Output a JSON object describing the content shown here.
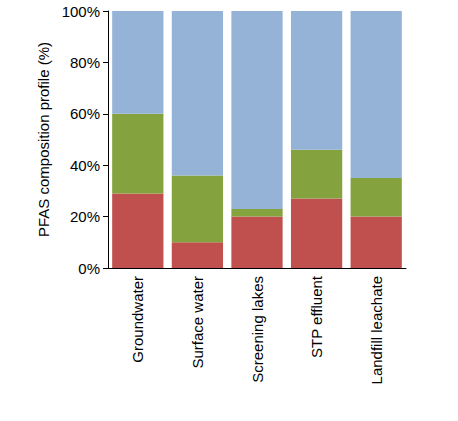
{
  "chart_data": {
    "type": "bar",
    "y_label": "PFAS composition profile (%)",
    "categories": [
      "Groundwater",
      "Surface water",
      "Screening lakes",
      "STP effluent",
      "Landfill leachate"
    ],
    "series": [
      {
        "color": "#c0504d",
        "values": [
          29,
          10,
          20,
          27,
          20
        ]
      },
      {
        "color": "#84a33f",
        "values": [
          31,
          26,
          3,
          19,
          15
        ]
      },
      {
        "color": "#95b3d7",
        "values": [
          40,
          64,
          77,
          54,
          65
        ]
      }
    ],
    "stacked": true,
    "ylim": [
      0,
      100
    ],
    "yticks": [
      {
        "value": 0,
        "label": "0%"
      },
      {
        "value": 20,
        "label": "20%"
      },
      {
        "value": 40,
        "label": "40%"
      },
      {
        "value": 60,
        "label": "60%"
      },
      {
        "value": 80,
        "label": "80%"
      },
      {
        "value": 100,
        "label": "100%"
      }
    ],
    "grid": false
  }
}
